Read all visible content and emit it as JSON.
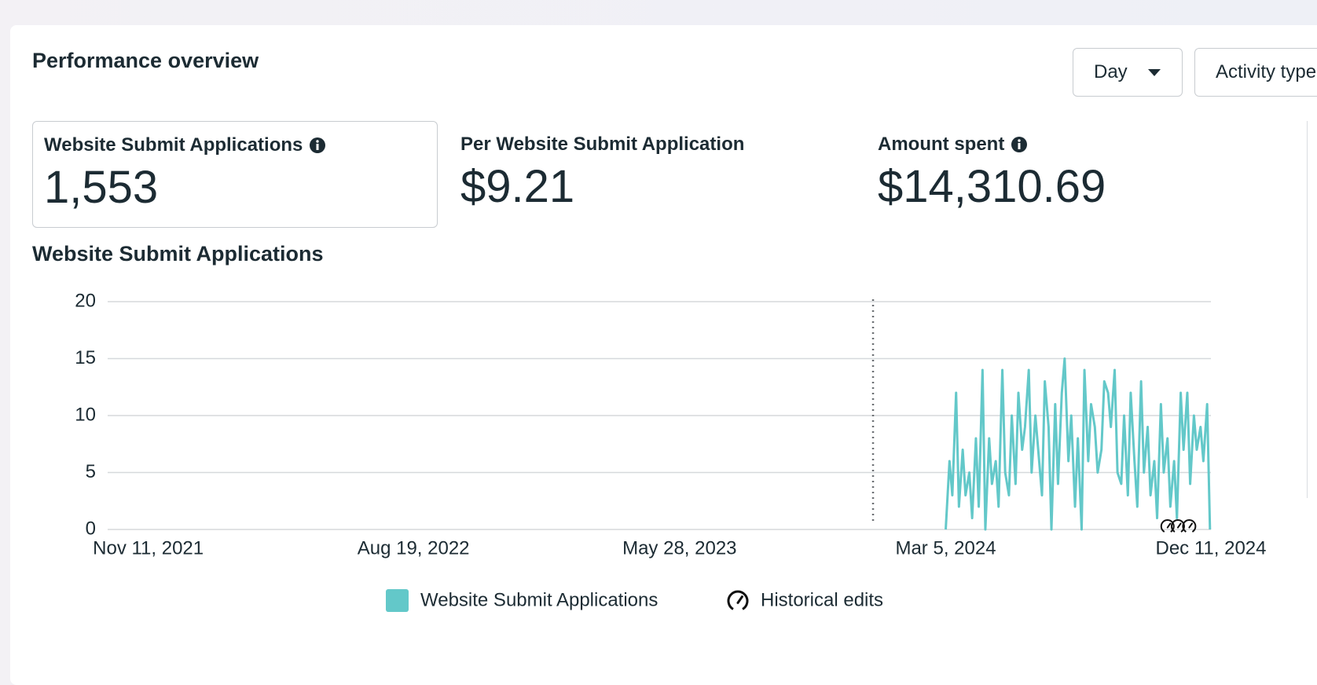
{
  "header": {
    "title": "Performance overview"
  },
  "controls": [
    "Day",
    "Activity type"
  ],
  "metrics": [
    {
      "label": "Website Submit Applications",
      "value": "1,553"
    },
    {
      "label": "Per Website Submit Application",
      "value": "$9.21"
    },
    {
      "label": "Amount spent",
      "value": "$14,310.69"
    }
  ],
  "chart_data": {
    "type": "line",
    "title": "Website Submit Applications",
    "x": [
      "2024-03-05",
      "2024-03-09",
      "2024-03-12",
      "2024-03-16",
      "2024-03-19",
      "2024-03-23",
      "2024-03-26",
      "2024-03-30",
      "2024-04-02",
      "2024-04-06",
      "2024-04-09",
      "2024-04-13",
      "2024-04-16",
      "2024-04-20",
      "2024-04-23",
      "2024-04-27",
      "2024-04-30",
      "2024-05-04",
      "2024-05-07",
      "2024-05-11",
      "2024-05-14",
      "2024-05-18",
      "2024-05-21",
      "2024-05-25",
      "2024-05-28",
      "2024-06-01",
      "2024-06-04",
      "2024-06-08",
      "2024-06-11",
      "2024-06-15",
      "2024-06-18",
      "2024-06-22",
      "2024-06-25",
      "2024-06-29",
      "2024-07-02",
      "2024-07-06",
      "2024-07-09",
      "2024-07-13",
      "2024-07-16",
      "2024-07-20",
      "2024-07-23",
      "2024-07-27",
      "2024-07-30",
      "2024-08-03",
      "2024-08-06",
      "2024-08-10",
      "2024-08-13",
      "2024-08-17",
      "2024-08-20",
      "2024-08-24",
      "2024-08-27",
      "2024-08-31",
      "2024-09-03",
      "2024-09-07",
      "2024-09-10",
      "2024-09-14",
      "2024-09-17",
      "2024-09-21",
      "2024-09-24",
      "2024-09-28",
      "2024-10-01",
      "2024-10-05",
      "2024-10-08",
      "2024-10-12",
      "2024-10-15",
      "2024-10-19",
      "2024-10-22",
      "2024-10-26",
      "2024-10-29",
      "2024-11-02",
      "2024-11-05",
      "2024-11-09",
      "2024-11-12",
      "2024-11-16",
      "2024-11-19",
      "2024-11-23",
      "2024-11-26",
      "2024-11-30",
      "2024-12-03",
      "2024-12-07",
      "2024-12-10"
    ],
    "series": [
      {
        "name": "Website Submit Applications",
        "color": "#63c8c9",
        "values": [
          0,
          6,
          3,
          12,
          2,
          7,
          3,
          5,
          1,
          8,
          2,
          14,
          0,
          8,
          4,
          6,
          2,
          14,
          5,
          3,
          10,
          4,
          12,
          7,
          9,
          14,
          5,
          10,
          7,
          3,
          13,
          9,
          0,
          11,
          4,
          12,
          15,
          6,
          10,
          2,
          8,
          0,
          14,
          6,
          11,
          9,
          5,
          7,
          13,
          12,
          9,
          14,
          5,
          4,
          10,
          3,
          12,
          6,
          2,
          13,
          5,
          9,
          3,
          6,
          1,
          11,
          5,
          8,
          2,
          6,
          1,
          12,
          7,
          12,
          4,
          10,
          7,
          9,
          6,
          11,
          0
        ]
      }
    ],
    "xlim": [
      "2021-09-29",
      "2024-12-11"
    ],
    "xticks": [
      {
        "value": "2021-11-11",
        "label": "Nov 11, 2021"
      },
      {
        "value": "2022-08-19",
        "label": "Aug 19, 2022"
      },
      {
        "value": "2023-05-28",
        "label": "May 28, 2023"
      },
      {
        "value": "2024-03-05",
        "label": "Mar 5, 2024"
      },
      {
        "value": "2024-12-11",
        "label": "Dec 11, 2024"
      }
    ],
    "ylim": [
      0,
      20
    ],
    "yticks": [
      0,
      5,
      10,
      15,
      20
    ],
    "grid": true,
    "reference_line_x": "2023-12-19",
    "historical_edits": {
      "label": "Historical edits",
      "x": [
        "2024-10-26",
        "2024-11-06",
        "2024-11-18"
      ]
    }
  }
}
